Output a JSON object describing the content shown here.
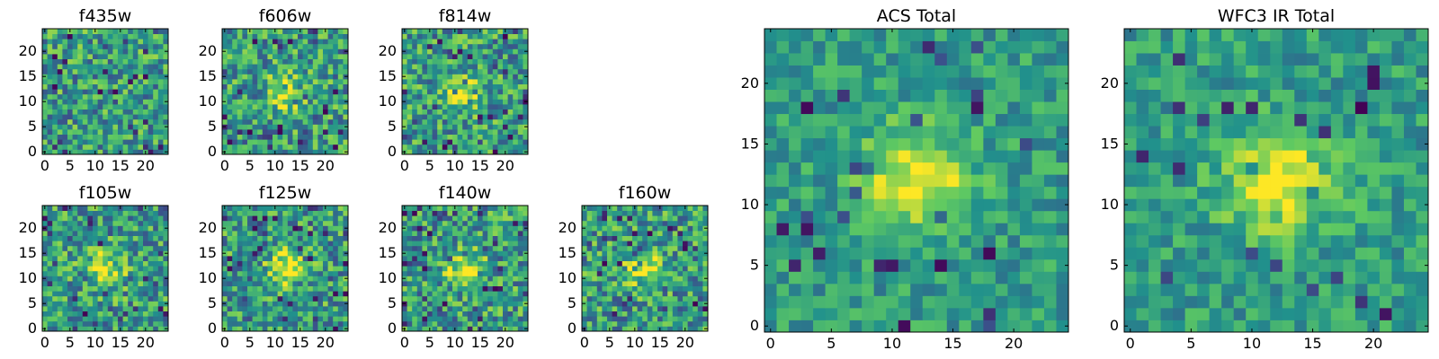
{
  "colormap": "viridis",
  "colormap_stops": [
    "#440154",
    "#3b528b",
    "#21918c",
    "#5ec962",
    "#fde725"
  ],
  "chart_data": [
    {
      "type": "heatmap",
      "title": "f435w",
      "grid": false,
      "shape": [
        25,
        25
      ],
      "xlim": [
        0,
        24
      ],
      "ylim": [
        0,
        24
      ],
      "xticks": [
        0,
        5,
        10,
        15,
        20
      ],
      "yticks": [
        0,
        5,
        10,
        15,
        20
      ],
      "source_center": null
    },
    {
      "type": "heatmap",
      "title": "f606w",
      "grid": false,
      "shape": [
        25,
        25
      ],
      "xlim": [
        0,
        24
      ],
      "ylim": [
        0,
        24
      ],
      "xticks": [
        0,
        5,
        10,
        15,
        20
      ],
      "yticks": [
        0,
        5,
        10,
        15,
        20
      ],
      "source_center": [
        12,
        12
      ]
    },
    {
      "type": "heatmap",
      "title": "f814w",
      "grid": false,
      "shape": [
        25,
        25
      ],
      "xlim": [
        0,
        24
      ],
      "ylim": [
        0,
        24
      ],
      "xticks": [
        0,
        5,
        10,
        15,
        20
      ],
      "yticks": [
        0,
        5,
        10,
        15,
        20
      ],
      "source_center": [
        12,
        12
      ]
    },
    {
      "type": "heatmap",
      "title": "f105w",
      "grid": false,
      "shape": [
        25,
        25
      ],
      "xlim": [
        0,
        24
      ],
      "ylim": [
        0,
        24
      ],
      "xticks": [
        0,
        5,
        10,
        15,
        20
      ],
      "yticks": [
        0,
        5,
        10,
        15,
        20
      ],
      "source_center": [
        12,
        12
      ]
    },
    {
      "type": "heatmap",
      "title": "f125w",
      "grid": false,
      "shape": [
        25,
        25
      ],
      "xlim": [
        0,
        24
      ],
      "ylim": [
        0,
        24
      ],
      "xticks": [
        0,
        5,
        10,
        15,
        20
      ],
      "yticks": [
        0,
        5,
        10,
        15,
        20
      ],
      "source_center": [
        12,
        12
      ]
    },
    {
      "type": "heatmap",
      "title": "f140w",
      "grid": false,
      "shape": [
        25,
        25
      ],
      "xlim": [
        0,
        24
      ],
      "ylim": [
        0,
        24
      ],
      "xticks": [
        0,
        5,
        10,
        15,
        20
      ],
      "yticks": [
        0,
        5,
        10,
        15,
        20
      ],
      "source_center": [
        12,
        12
      ]
    },
    {
      "type": "heatmap",
      "title": "f160w",
      "grid": false,
      "shape": [
        25,
        25
      ],
      "xlim": [
        0,
        24
      ],
      "ylim": [
        0,
        24
      ],
      "xticks": [
        0,
        5,
        10,
        15,
        20
      ],
      "yticks": [
        0,
        5,
        10,
        15,
        20
      ],
      "source_center": [
        12,
        12
      ]
    },
    {
      "type": "heatmap",
      "title": "ACS Total",
      "grid": false,
      "shape": [
        25,
        25
      ],
      "xlim": [
        0,
        24
      ],
      "ylim": [
        0,
        24
      ],
      "xticks": [
        0,
        5,
        10,
        15,
        20
      ],
      "yticks": [
        0,
        5,
        10,
        15,
        20
      ],
      "source_center": [
        12,
        12
      ]
    },
    {
      "type": "heatmap",
      "title": "WFC3 IR Total",
      "grid": false,
      "shape": [
        25,
        25
      ],
      "xlim": [
        0,
        24
      ],
      "ylim": [
        0,
        24
      ],
      "xticks": [
        0,
        5,
        10,
        15,
        20
      ],
      "yticks": [
        0,
        5,
        10,
        15,
        20
      ],
      "source_center": [
        12,
        12
      ]
    }
  ]
}
